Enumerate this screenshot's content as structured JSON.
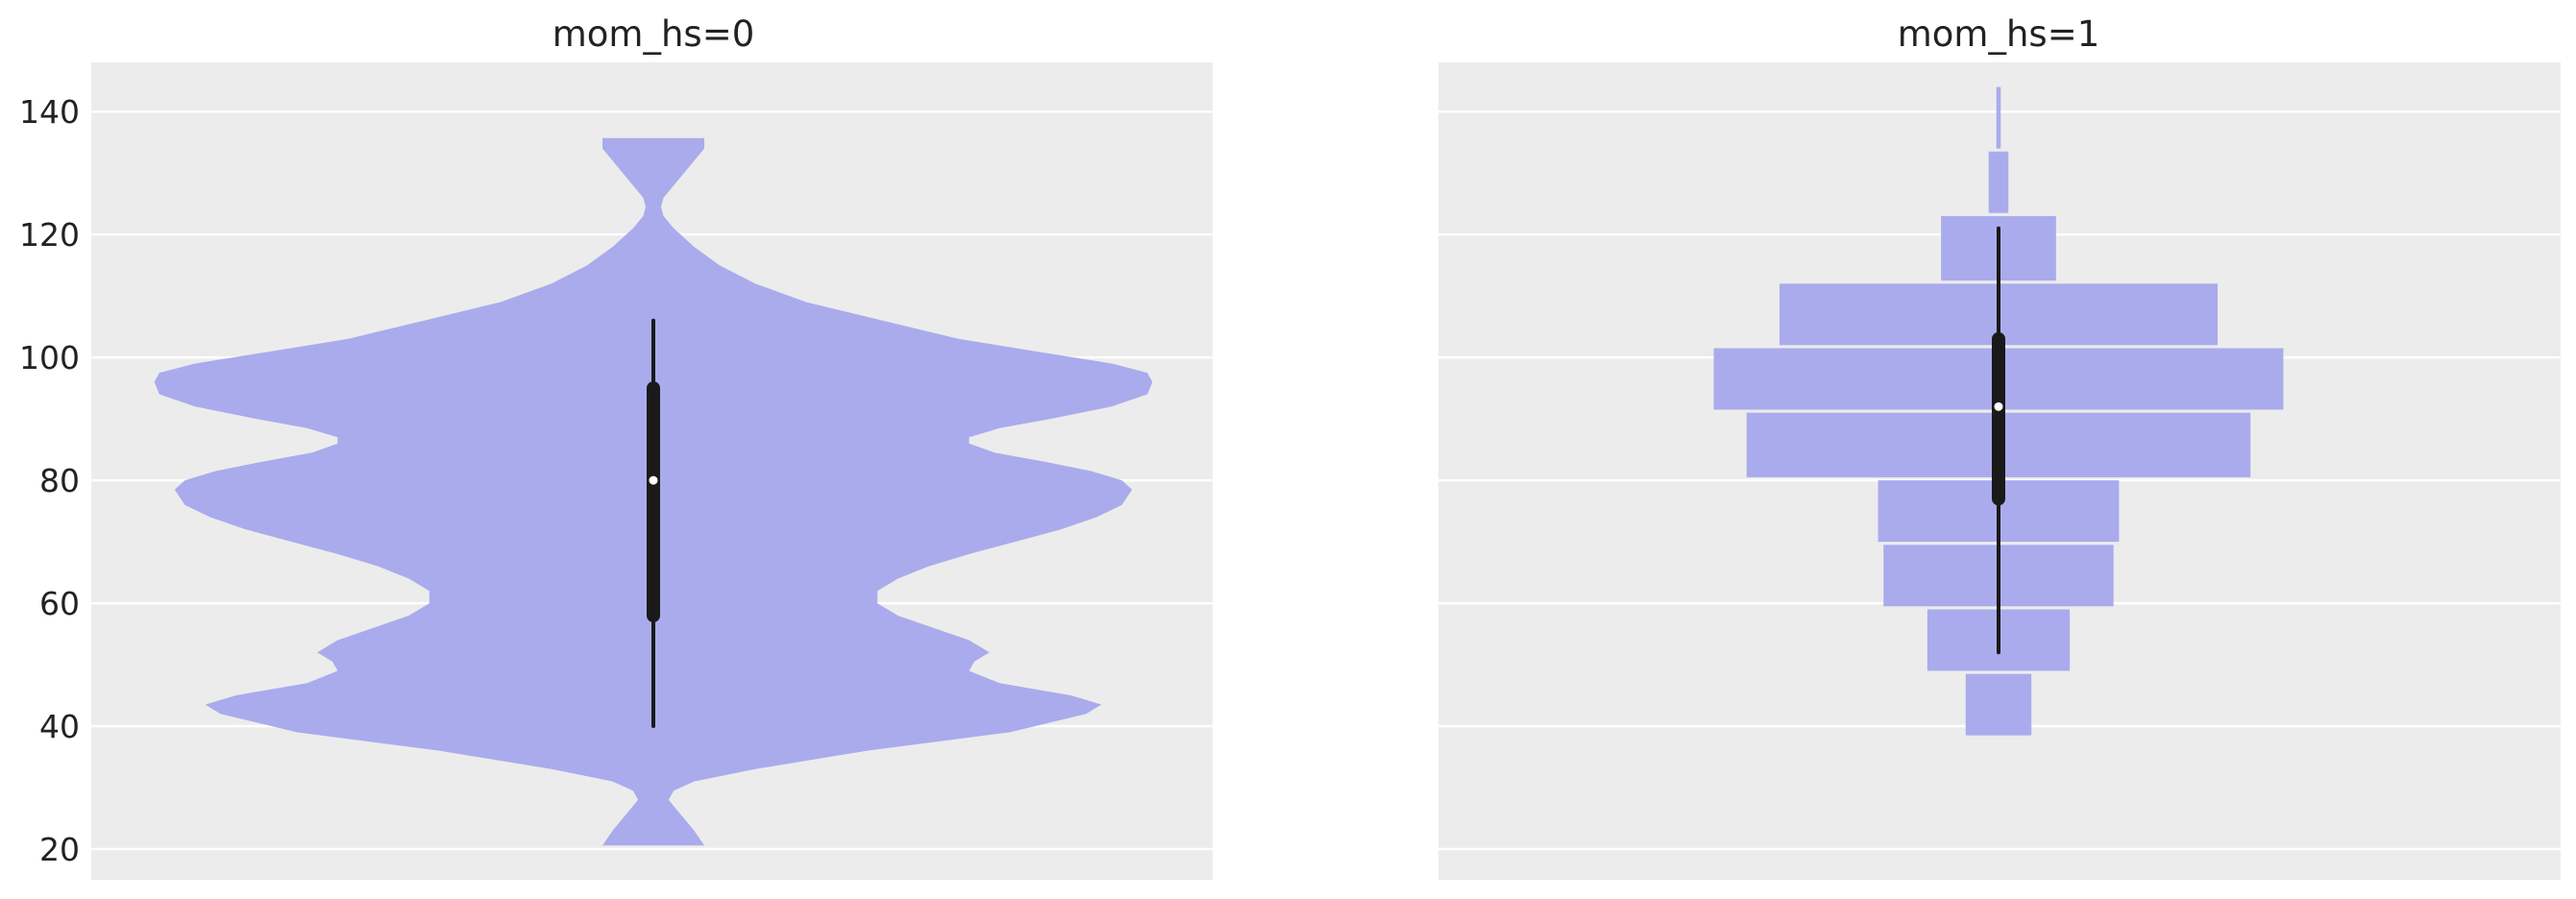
{
  "chart_data": [
    {
      "type": "violin",
      "title": "mom_hs=0",
      "xlabel": "",
      "ylabel": "",
      "ylim": [
        15,
        148
      ],
      "yticks": [
        20,
        40,
        60,
        80,
        100,
        120,
        140
      ],
      "grid": true,
      "density_profile": {
        "y": [
          20.6,
          23,
          26,
          28,
          29.5,
          31,
          33,
          36,
          39,
          42,
          43.5,
          45,
          47,
          49,
          50.5,
          52,
          54,
          56,
          58,
          60,
          62,
          64,
          66,
          68,
          70,
          72,
          74,
          76,
          78.5,
          80,
          81.5,
          83,
          84.5,
          86,
          87,
          88.5,
          90,
          92,
          94,
          96,
          97.5,
          99,
          101,
          103,
          106,
          109,
          112,
          115,
          118,
          121,
          123,
          124.5,
          126,
          128,
          130,
          132,
          134,
          135.7
        ],
        "half_width": [
          0.1,
          0.08,
          0.05,
          0.03,
          0.04,
          0.08,
          0.2,
          0.42,
          0.7,
          0.85,
          0.88,
          0.82,
          0.68,
          0.62,
          0.63,
          0.66,
          0.62,
          0.55,
          0.48,
          0.44,
          0.44,
          0.48,
          0.54,
          0.62,
          0.71,
          0.8,
          0.87,
          0.92,
          0.94,
          0.92,
          0.86,
          0.77,
          0.67,
          0.62,
          0.62,
          0.68,
          0.78,
          0.9,
          0.97,
          0.98,
          0.97,
          0.9,
          0.75,
          0.6,
          0.45,
          0.3,
          0.2,
          0.13,
          0.08,
          0.04,
          0.02,
          0.015,
          0.02,
          0.04,
          0.06,
          0.08,
          0.1,
          0.1
        ]
      },
      "summary": {
        "whisker_low": 40,
        "q1": 58,
        "median": 80,
        "q3": 95,
        "whisker_high": 106
      }
    },
    {
      "type": "histogram",
      "title": "mom_hs=1",
      "xlabel": "",
      "ylabel": "",
      "ylim": [
        15,
        148
      ],
      "yticks": [
        20,
        40,
        60,
        80,
        100,
        120,
        140
      ],
      "grid": true,
      "bins": [
        {
          "y0": 38.5,
          "y1": 48.5,
          "half_width": 0.06
        },
        {
          "y0": 49,
          "y1": 59,
          "half_width": 0.13
        },
        {
          "y0": 59.5,
          "y1": 69.5,
          "half_width": 0.21
        },
        {
          "y0": 70,
          "y1": 80,
          "half_width": 0.22
        },
        {
          "y0": 80.5,
          "y1": 91,
          "half_width": 0.46
        },
        {
          "y0": 91.5,
          "y1": 101.5,
          "half_width": 0.52
        },
        {
          "y0": 102,
          "y1": 112,
          "half_width": 0.4
        },
        {
          "y0": 112.5,
          "y1": 123,
          "half_width": 0.105
        },
        {
          "y0": 123.5,
          "y1": 133.5,
          "half_width": 0.018
        },
        {
          "y0": 134,
          "y1": 144,
          "half_width": 0.004
        }
      ],
      "summary": {
        "whisker_low": 52,
        "q1": 77,
        "median": 92,
        "q3": 103,
        "whisker_high": 121
      }
    }
  ],
  "style": {
    "background": "#ffffff",
    "panel_background": "#ececec",
    "grid_color": "#ffffff",
    "fill_color": "#aaabec",
    "box_color": "#1a1a1a",
    "median_color": "#ffffff",
    "text_color": "#222222"
  }
}
